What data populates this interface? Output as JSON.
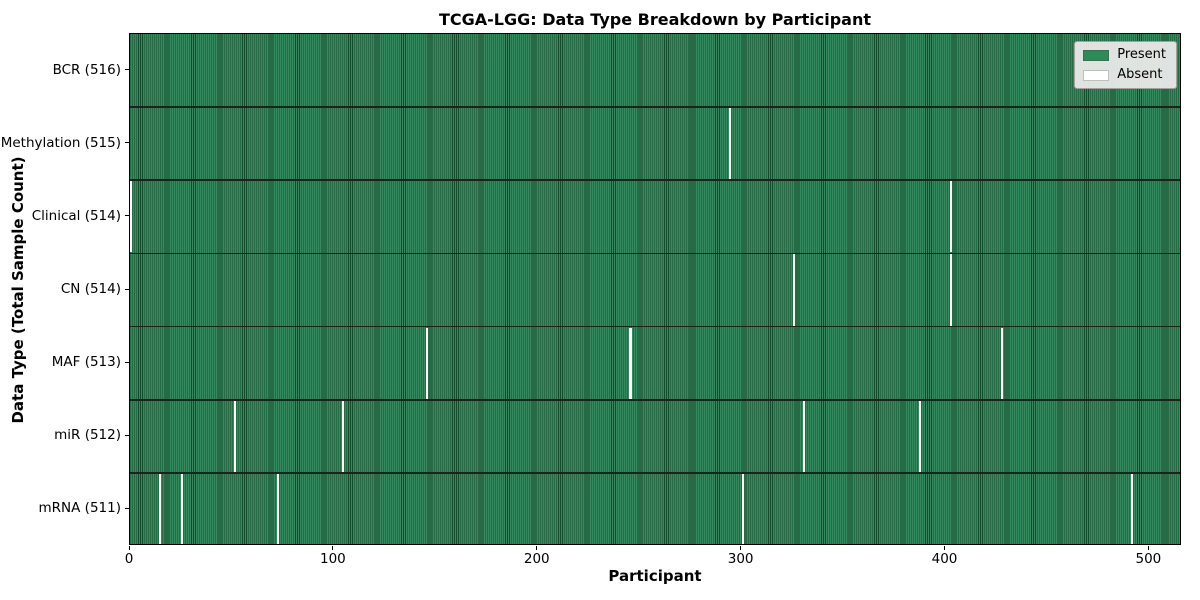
{
  "chart_data": {
    "type": "heatmap",
    "title": "TCGA-LGG: Data Type Breakdown by Participant",
    "xlabel": "Participant",
    "ylabel": "Data Type (Total Sample Count)",
    "x_range": [
      0,
      516
    ],
    "total_participants": 516,
    "xticks": [
      0,
      100,
      200,
      300,
      400,
      500
    ],
    "grid": false,
    "legend_position": "upper right",
    "legend_items": [
      {
        "label": "Present",
        "color": "#2e8b57"
      },
      {
        "label": "Absent",
        "color": "#ffffff"
      }
    ],
    "colors": {
      "present_fill": "#37895e",
      "present_edge": "#164a2f",
      "absent_fill": "#fafafa",
      "row_separator": "#1a241d",
      "legend_background": "#ececec"
    },
    "rows": [
      {
        "label": "BCR (516)",
        "data_type": "BCR",
        "sample_count": 516,
        "absent_participants": []
      },
      {
        "label": "Methylation (515)",
        "data_type": "Methylation",
        "sample_count": 515,
        "absent_participants": [
          294
        ]
      },
      {
        "label": "Clinical (514)",
        "data_type": "Clinical",
        "sample_count": 514,
        "absent_participants": [
          0,
          402
        ]
      },
      {
        "label": "CN (514)",
        "data_type": "CN",
        "sample_count": 514,
        "absent_participants": [
          325,
          402
        ]
      },
      {
        "label": "MAF (513)",
        "data_type": "MAF",
        "sample_count": 513,
        "absent_participants": [
          145,
          245,
          427
        ]
      },
      {
        "label": "miR (512)",
        "data_type": "miR",
        "sample_count": 512,
        "absent_participants": [
          51,
          104,
          330,
          387
        ]
      },
      {
        "label": "mRNA (511)",
        "data_type": "mRNA",
        "sample_count": 511,
        "absent_participants": [
          14,
          25,
          72,
          300,
          491
        ]
      }
    ]
  }
}
